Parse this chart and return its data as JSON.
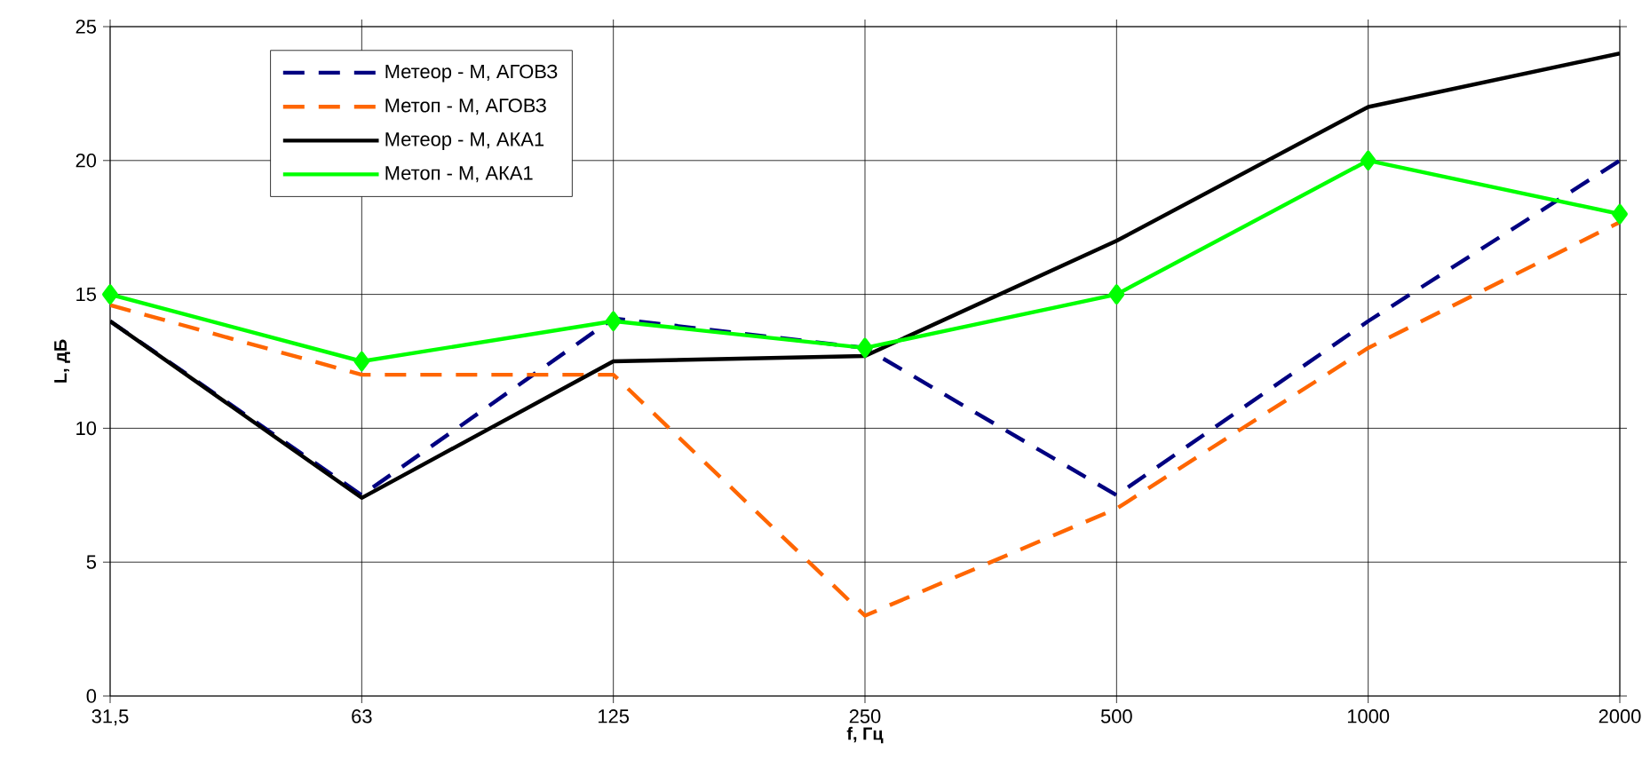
{
  "chart_data": {
    "type": "line",
    "xlabel": "f, Гц",
    "ylabel": "L, дБ",
    "categories": [
      "31,5",
      "63",
      "125",
      "250",
      "500",
      "1000",
      "2000"
    ],
    "ylim": [
      0,
      25
    ],
    "yticks": [
      0,
      5,
      10,
      15,
      20,
      25
    ],
    "grid": true,
    "legend": "top left",
    "series": [
      {
        "name": "Метеор - М, АГОВЗ",
        "color": "#000080",
        "line_style": "dashed",
        "marker": "none",
        "values": [
          14,
          7.5,
          14.1,
          13,
          7.5,
          14,
          20
        ]
      },
      {
        "name": "Метоп - М, АГОВЗ",
        "color": "#ff6600",
        "line_style": "dashed",
        "marker": "none",
        "values": [
          14.6,
          12,
          12,
          3,
          7,
          13,
          17.7
        ]
      },
      {
        "name": "Метеор - М,  АКА1",
        "color": "#000000",
        "line_style": "solid",
        "marker": "none",
        "values": [
          14,
          7.4,
          12.5,
          12.7,
          17,
          22,
          24
        ]
      },
      {
        "name": "Метоп - М, АКА1",
        "color": "#00ff00",
        "line_style": "solid",
        "marker": "diamond",
        "values": [
          15,
          12.5,
          14,
          13,
          15,
          20,
          18
        ]
      }
    ]
  }
}
